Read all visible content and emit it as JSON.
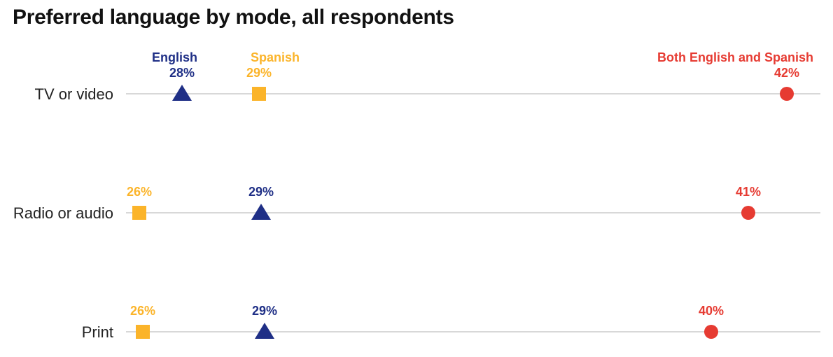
{
  "chart_data": {
    "type": "scatter",
    "title": "Preferred language by mode, all respondents",
    "categories": [
      "TV or video",
      "Radio or audio",
      "Print"
    ],
    "series": [
      {
        "name": "English",
        "marker": "triangle",
        "color": "#1f2f86",
        "values": [
          28,
          29,
          29
        ]
      },
      {
        "name": "Spanish",
        "marker": "square",
        "color": "#fbb42a",
        "values": [
          29,
          26,
          26
        ]
      },
      {
        "name": "Both English and Spanish",
        "marker": "circle",
        "color": "#e63b32",
        "values": [
          42,
          41,
          40
        ]
      }
    ],
    "value_suffix": "%",
    "grid": true,
    "legend": "series names above the first row"
  }
}
